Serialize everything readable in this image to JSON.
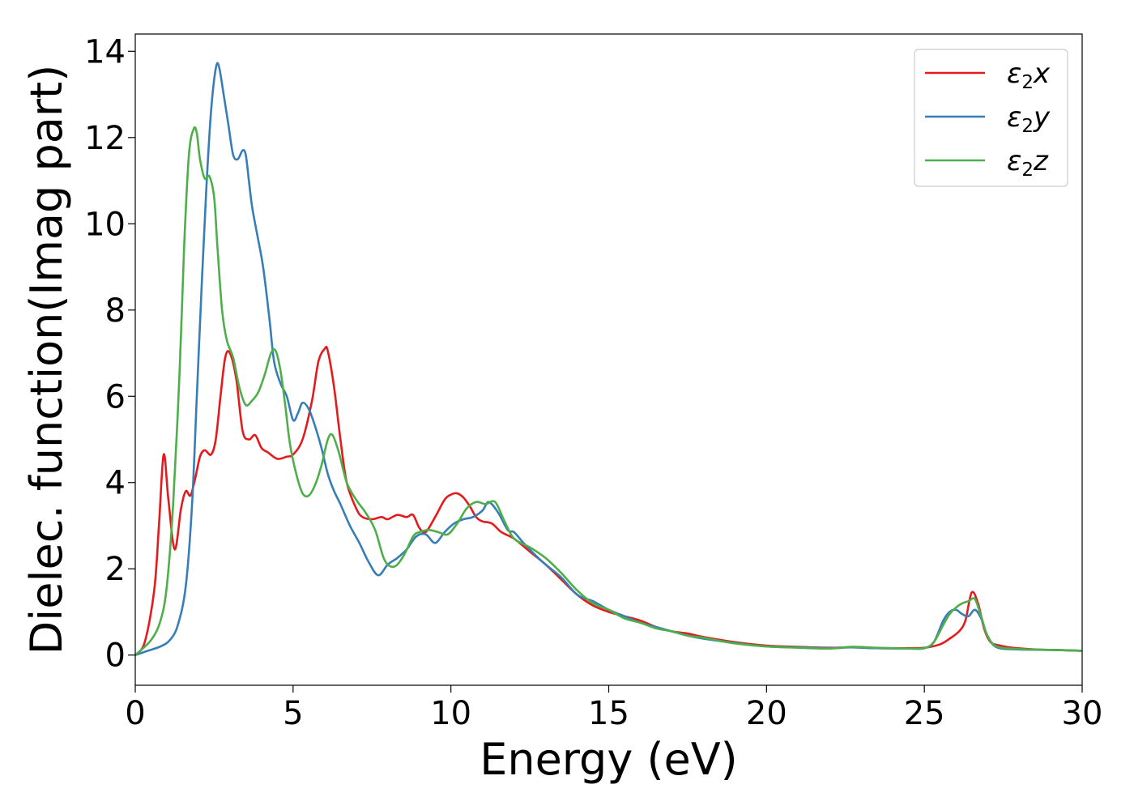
{
  "chart_data": {
    "type": "line",
    "xlabel": "Energy (eV)",
    "ylabel": "Dielec. function(Imag part)",
    "xlim": [
      0,
      30
    ],
    "ylim": [
      -0.7,
      14.4
    ],
    "xticks": [
      0,
      5,
      10,
      15,
      20,
      25,
      30
    ],
    "yticks": [
      0,
      2,
      4,
      6,
      8,
      10,
      12,
      14
    ],
    "grid": false,
    "legend_position": "top-right",
    "series": [
      {
        "name": "ε2x",
        "label_main": "ε",
        "label_sub": "2",
        "label_tail": "x",
        "color": "#e41a1c",
        "x": [
          0,
          0.3,
          0.6,
          0.75,
          0.9,
          1.05,
          1.25,
          1.45,
          1.6,
          1.75,
          1.9,
          2.05,
          2.2,
          2.4,
          2.55,
          2.7,
          2.85,
          3.0,
          3.2,
          3.4,
          3.6,
          3.8,
          4.0,
          4.2,
          4.5,
          4.8,
          5.0,
          5.3,
          5.6,
          5.8,
          6.0,
          6.1,
          6.3,
          6.5,
          6.7,
          7.0,
          7.2,
          7.5,
          7.8,
          8.0,
          8.3,
          8.6,
          8.8,
          9.0,
          9.2,
          9.5,
          9.8,
          10.0,
          10.2,
          10.4,
          10.6,
          10.8,
          11.0,
          11.3,
          11.6,
          12.0,
          12.5,
          13.0,
          13.5,
          14.0,
          14.5,
          15.0,
          15.5,
          16.0,
          16.5,
          17.0,
          17.5,
          18.0,
          19.0,
          20.0,
          21.0,
          22.0,
          22.7,
          23.5,
          24.5,
          25.0,
          25.5,
          25.8,
          26.1,
          26.3,
          26.5,
          26.7,
          26.9,
          27.1,
          27.4,
          27.8,
          28.5,
          29.0,
          30.0
        ],
        "y": [
          0.0,
          0.3,
          1.5,
          3.0,
          4.65,
          3.6,
          2.45,
          3.4,
          3.8,
          3.7,
          4.1,
          4.6,
          4.75,
          4.65,
          5.0,
          6.0,
          6.9,
          7.0,
          6.4,
          5.2,
          5.0,
          5.1,
          4.8,
          4.7,
          4.55,
          4.6,
          4.65,
          5.0,
          5.9,
          6.8,
          7.1,
          7.05,
          6.2,
          5.0,
          4.0,
          3.4,
          3.2,
          3.15,
          3.2,
          3.15,
          3.25,
          3.2,
          3.25,
          2.95,
          2.85,
          3.2,
          3.6,
          3.72,
          3.75,
          3.65,
          3.45,
          3.2,
          3.1,
          3.05,
          2.85,
          2.7,
          2.4,
          2.1,
          1.75,
          1.4,
          1.15,
          1.0,
          0.9,
          0.8,
          0.65,
          0.55,
          0.5,
          0.42,
          0.3,
          0.22,
          0.19,
          0.17,
          0.18,
          0.16,
          0.16,
          0.17,
          0.25,
          0.38,
          0.55,
          0.8,
          1.45,
          1.2,
          0.6,
          0.3,
          0.22,
          0.17,
          0.13,
          0.12,
          0.1
        ]
      },
      {
        "name": "ε2y",
        "label_main": "ε",
        "label_sub": "2",
        "label_tail": "y",
        "color": "#377eb8",
        "x": [
          0,
          0.4,
          0.8,
          1.1,
          1.35,
          1.6,
          1.8,
          1.95,
          2.1,
          2.25,
          2.4,
          2.55,
          2.65,
          2.8,
          2.95,
          3.1,
          3.25,
          3.4,
          3.5,
          3.6,
          3.7,
          3.85,
          4.05,
          4.25,
          4.4,
          4.6,
          4.8,
          5.0,
          5.15,
          5.3,
          5.5,
          5.7,
          5.9,
          6.1,
          6.3,
          6.5,
          6.8,
          7.1,
          7.4,
          7.7,
          8.0,
          8.3,
          8.6,
          8.9,
          9.2,
          9.5,
          9.8,
          10.1,
          10.4,
          10.7,
          11.0,
          11.2,
          11.5,
          11.8,
          12.0,
          12.3,
          12.7,
          13.0,
          13.5,
          14.0,
          14.5,
          15.0,
          15.5,
          16.0,
          16.5,
          17.0,
          17.5,
          18.0,
          19.0,
          20.0,
          21.0,
          22.0,
          22.7,
          23.5,
          24.5,
          25.0,
          25.3,
          25.6,
          25.8,
          26.0,
          26.2,
          26.4,
          26.6,
          26.8,
          27.0,
          27.3,
          28.0,
          29.0,
          30.0
        ],
        "y": [
          0.0,
          0.1,
          0.2,
          0.35,
          0.7,
          1.6,
          3.5,
          6.0,
          8.5,
          10.8,
          12.6,
          13.6,
          13.65,
          13.0,
          12.3,
          11.6,
          11.5,
          11.7,
          11.6,
          11.0,
          10.4,
          9.8,
          9.0,
          7.8,
          6.8,
          6.3,
          6.0,
          5.45,
          5.6,
          5.85,
          5.7,
          5.3,
          4.8,
          4.2,
          3.8,
          3.5,
          3.0,
          2.6,
          2.15,
          1.85,
          2.1,
          2.25,
          2.45,
          2.75,
          2.8,
          2.6,
          2.85,
          3.05,
          3.15,
          3.2,
          3.35,
          3.55,
          3.3,
          2.9,
          2.85,
          2.6,
          2.3,
          2.1,
          1.8,
          1.4,
          1.25,
          1.05,
          0.9,
          0.75,
          0.65,
          0.55,
          0.45,
          0.38,
          0.28,
          0.2,
          0.18,
          0.16,
          0.18,
          0.16,
          0.15,
          0.16,
          0.3,
          0.8,
          1.0,
          1.05,
          0.95,
          0.9,
          1.05,
          0.85,
          0.45,
          0.18,
          0.13,
          0.12,
          0.1
        ]
      },
      {
        "name": "ε2z",
        "label_main": "ε",
        "label_sub": "2",
        "label_tail": "z",
        "color": "#4daf4a",
        "x": [
          0,
          0.5,
          0.8,
          1.0,
          1.2,
          1.4,
          1.55,
          1.7,
          1.85,
          1.95,
          2.05,
          2.2,
          2.35,
          2.5,
          2.6,
          2.75,
          2.9,
          3.1,
          3.3,
          3.5,
          3.7,
          3.9,
          4.1,
          4.3,
          4.45,
          4.6,
          4.75,
          4.9,
          5.1,
          5.3,
          5.5,
          5.7,
          5.9,
          6.1,
          6.25,
          6.45,
          6.7,
          7.0,
          7.3,
          7.6,
          7.9,
          8.2,
          8.5,
          8.8,
          9.0,
          9.3,
          9.6,
          9.9,
          10.2,
          10.5,
          10.8,
          11.1,
          11.4,
          11.7,
          12.0,
          12.5,
          13.0,
          13.5,
          14.0,
          14.5,
          15.0,
          15.5,
          16.0,
          16.5,
          17.0,
          17.5,
          18.0,
          19.0,
          20.0,
          21.0,
          22.0,
          22.7,
          23.5,
          24.5,
          25.0,
          25.3,
          25.6,
          25.8,
          26.0,
          26.2,
          26.4,
          26.6,
          26.8,
          27.0,
          27.3,
          28.0,
          29.0,
          30.0
        ],
        "y": [
          0.0,
          0.35,
          0.8,
          1.6,
          3.5,
          6.5,
          9.5,
          11.6,
          12.2,
          12.1,
          11.5,
          11.05,
          11.1,
          10.6,
          9.5,
          8.0,
          7.3,
          6.9,
          6.2,
          5.8,
          5.9,
          6.1,
          6.5,
          7.0,
          7.05,
          6.6,
          5.8,
          4.9,
          4.2,
          3.75,
          3.7,
          3.95,
          4.4,
          5.0,
          5.1,
          4.7,
          4.0,
          3.6,
          3.3,
          2.9,
          2.2,
          2.05,
          2.3,
          2.75,
          2.85,
          2.9,
          2.85,
          2.8,
          3.05,
          3.4,
          3.55,
          3.5,
          3.55,
          3.1,
          2.7,
          2.5,
          2.25,
          1.9,
          1.5,
          1.2,
          1.05,
          0.85,
          0.75,
          0.62,
          0.55,
          0.45,
          0.4,
          0.27,
          0.2,
          0.17,
          0.15,
          0.19,
          0.17,
          0.15,
          0.16,
          0.3,
          0.7,
          0.95,
          1.1,
          1.2,
          1.25,
          1.3,
          0.9,
          0.45,
          0.2,
          0.14,
          0.12,
          0.1
        ]
      }
    ]
  }
}
